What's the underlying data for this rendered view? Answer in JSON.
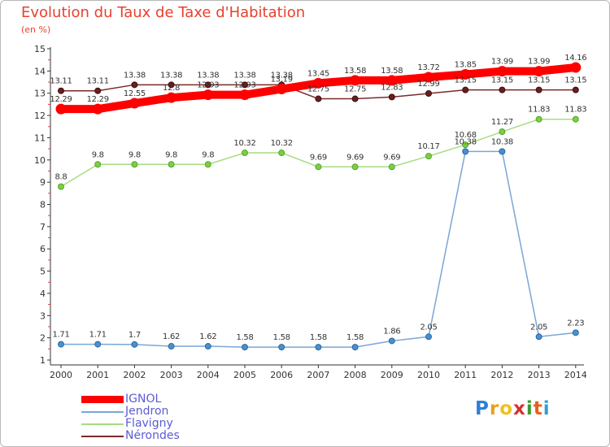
{
  "title": "Evolution du Taux de Taxe d'Habitation",
  "subtitle": "(en %)",
  "logo": {
    "text": "Proxiti",
    "letters": [
      "P",
      "r",
      "o",
      "x",
      "i",
      "t",
      "i"
    ],
    "colors": [
      "#2f7fd6",
      "#e8a020",
      "#f0c020",
      "#d83030",
      "#3a9a30",
      "#e86020",
      "#2fa0d6"
    ]
  },
  "chart_data": {
    "type": "line",
    "title": "Evolution du Taux de Taxe d'Habitation",
    "ylabel": "(en %)",
    "xlabel": "",
    "ylim": [
      1,
      15
    ],
    "yticks": [
      1,
      2,
      3,
      4,
      5,
      6,
      7,
      8,
      9,
      10,
      11,
      12,
      13,
      14,
      15
    ],
    "grid": false,
    "legend_position": "bottom-left",
    "categories": [
      "2000",
      "2001",
      "2002",
      "2003",
      "2004",
      "2005",
      "2006",
      "2007",
      "2008",
      "2009",
      "2010",
      "2011",
      "2012",
      "2013",
      "2014"
    ],
    "series": [
      {
        "name": "IGNOL",
        "color": "#ff0000",
        "values": [
          12.29,
          12.29,
          12.55,
          12.8,
          12.93,
          12.93,
          13.19,
          13.45,
          13.58,
          13.58,
          13.72,
          13.85,
          13.99,
          13.99,
          14.16
        ],
        "labels": [
          "12.29",
          "12.29",
          "12.55",
          "12.8",
          "12.93",
          "12.93",
          "13.19",
          "13.45",
          "13.58",
          "13.58",
          "13.72",
          "13.85",
          "13.99",
          "13.99",
          "14.16"
        ]
      },
      {
        "name": "Jendron",
        "color": "#7aa6d6",
        "values": [
          1.71,
          1.71,
          1.7,
          1.62,
          1.62,
          1.58,
          1.58,
          1.58,
          1.58,
          1.86,
          2.05,
          10.38,
          10.38,
          2.05,
          2.23
        ],
        "labels": [
          "1.71",
          "1.71",
          "1.7",
          "1.62",
          "1.62",
          "1.58",
          "1.58",
          "1.58",
          "1.58",
          "1.86",
          "2.05",
          "10.38",
          "10.38",
          "2.05",
          "2.23"
        ]
      },
      {
        "name": "Flavigny",
        "color": "#a8dc80",
        "values": [
          8.8,
          9.8,
          9.8,
          9.8,
          9.8,
          10.32,
          10.32,
          9.69,
          9.69,
          9.69,
          10.17,
          10.68,
          11.27,
          11.83,
          11.83
        ],
        "labels": [
          "8.8",
          "9.8",
          "9.8",
          "9.8",
          "9.8",
          "10.32",
          "10.32",
          "9.69",
          "9.69",
          "9.69",
          "10.17",
          "10.68",
          "11.27",
          "11.83",
          "11.83"
        ]
      },
      {
        "name": "Nérondes",
        "color": "#7a2a2a",
        "values": [
          13.11,
          13.11,
          13.38,
          13.38,
          13.38,
          13.38,
          13.38,
          12.75,
          12.75,
          12.83,
          12.99,
          13.15,
          13.15,
          13.15,
          13.15
        ],
        "labels": [
          "13.11",
          "13.11",
          "13.38",
          "13.38",
          "13.38",
          "13.38",
          "13.38",
          "12.75",
          "12.75",
          "12.83",
          "12.99",
          "13.15",
          "13.15",
          "13.15",
          "13.15"
        ]
      }
    ]
  }
}
